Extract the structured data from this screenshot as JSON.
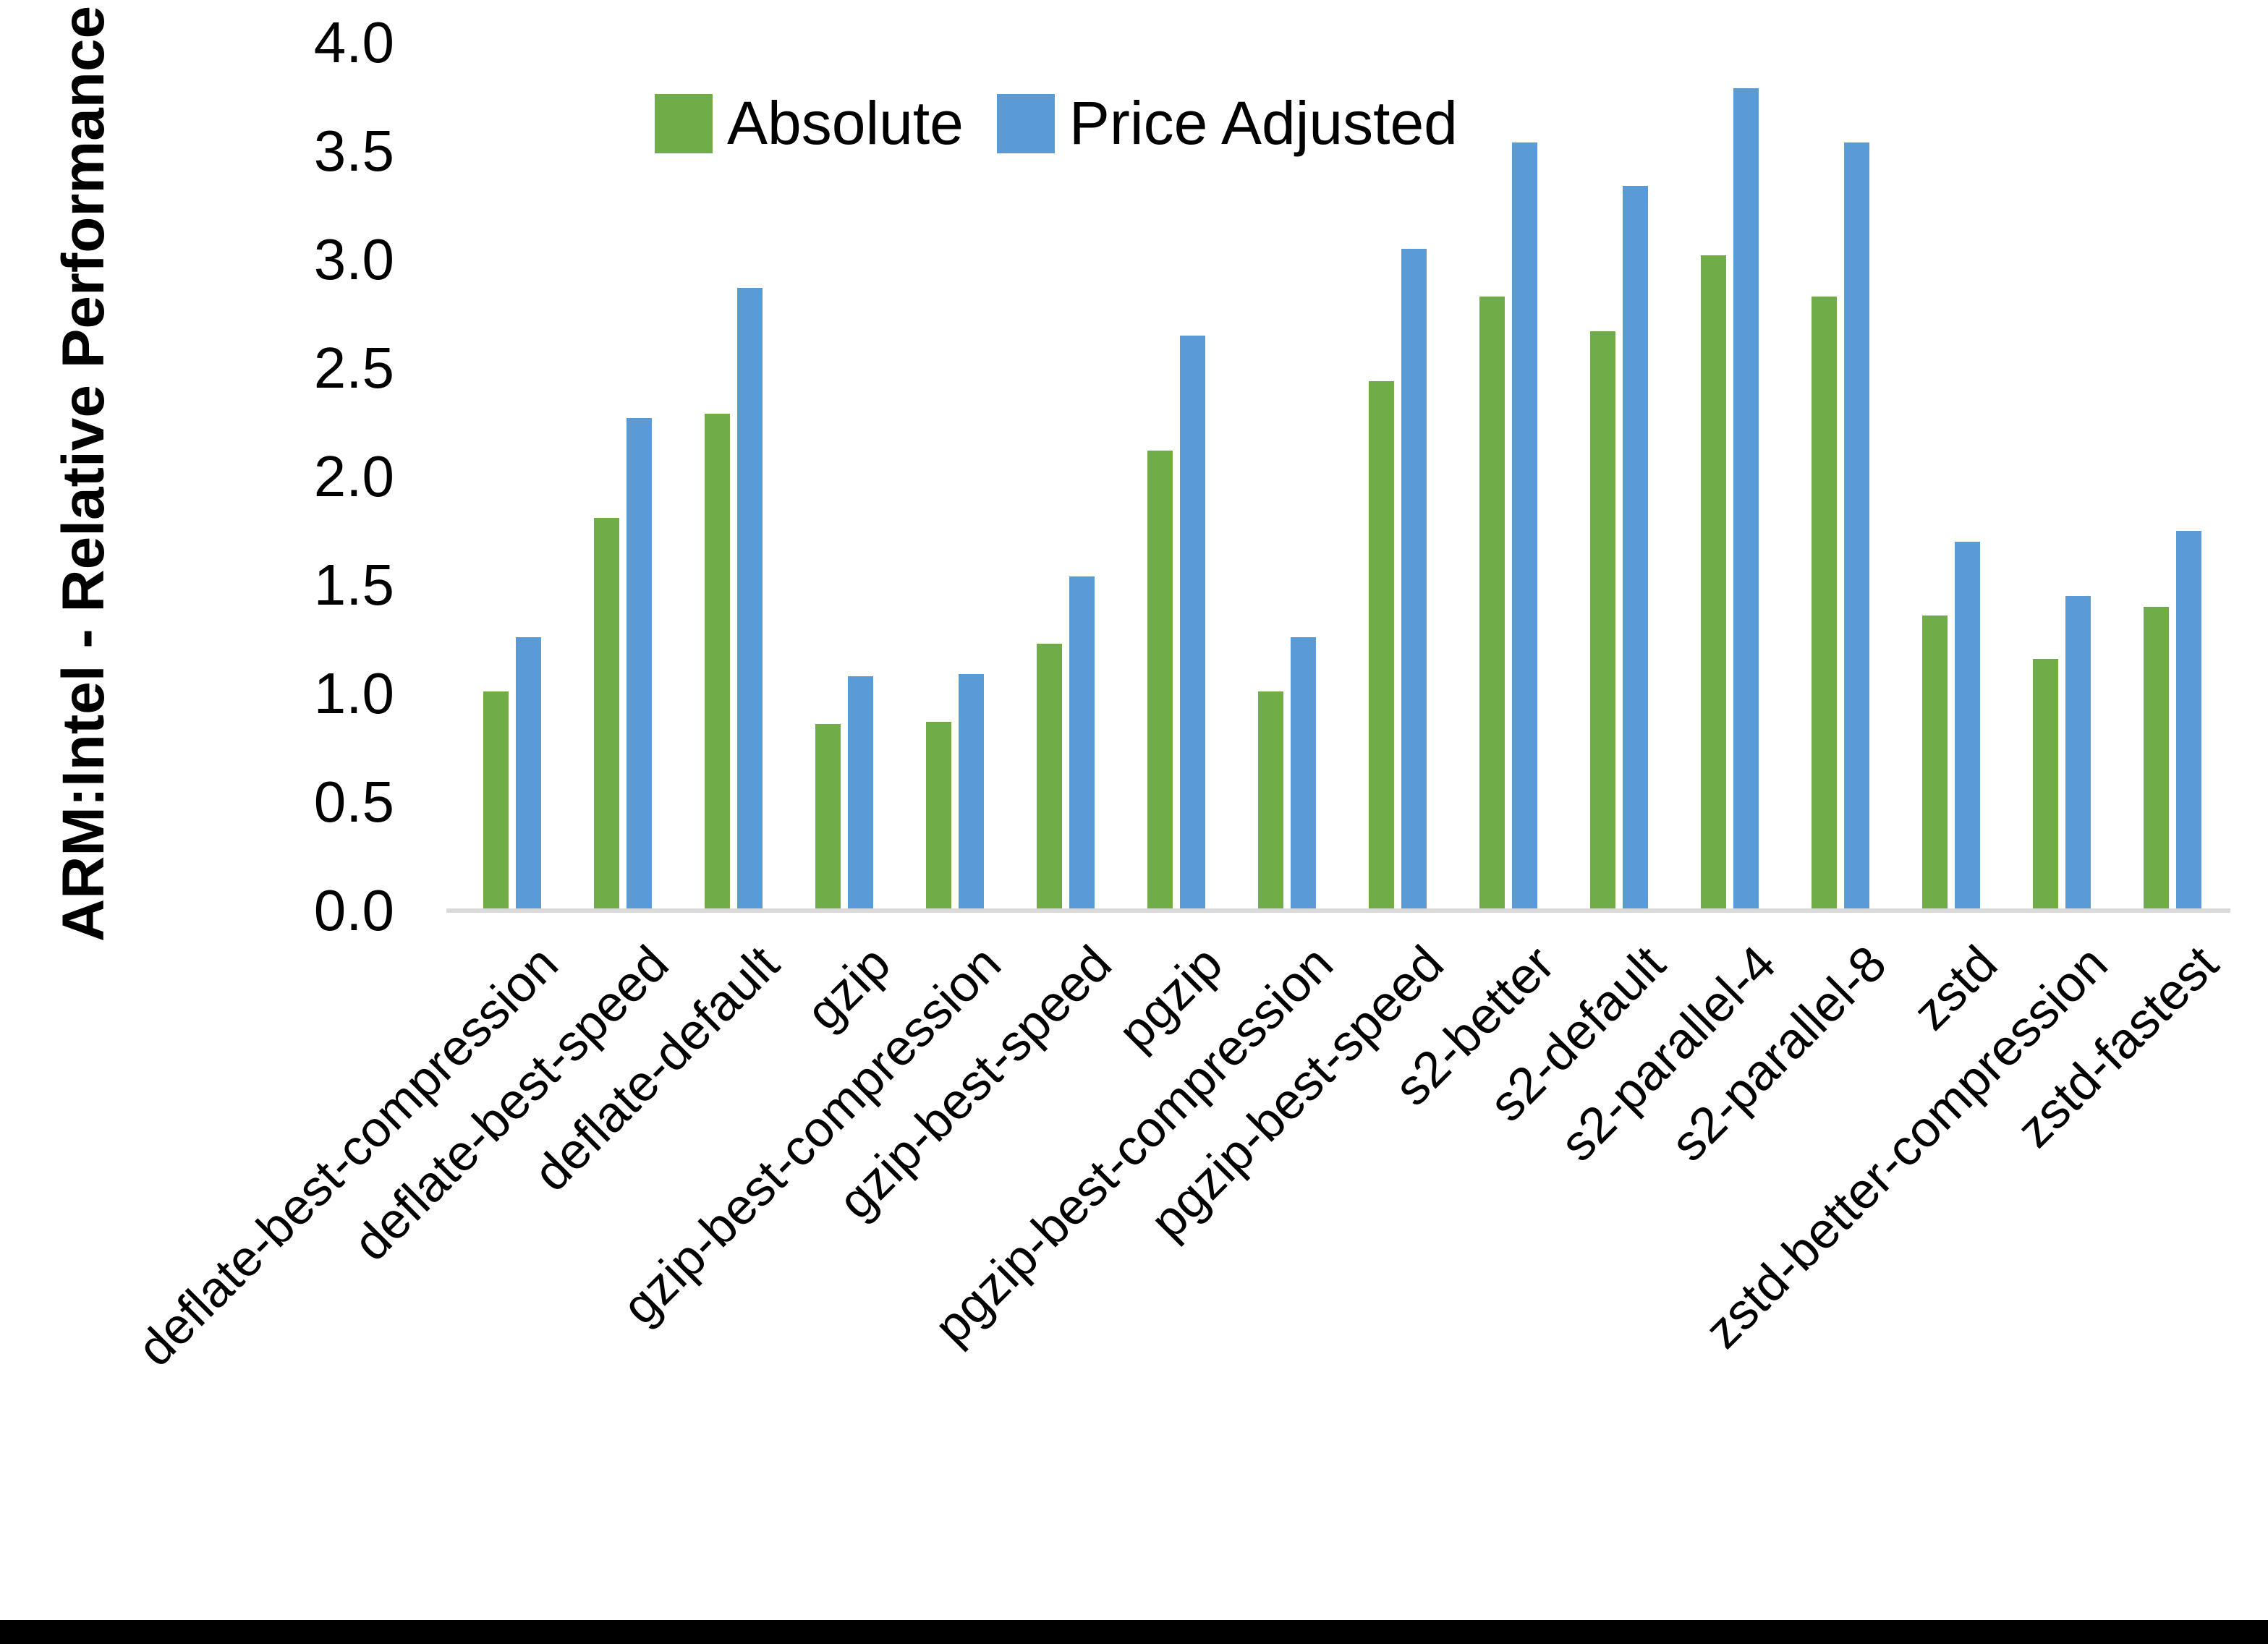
{
  "chart_data": {
    "type": "bar",
    "title": "",
    "ylabel": "ARM:Intel - Relative Performance",
    "xlabel": "",
    "ylim": [
      0.0,
      4.0
    ],
    "ytick_step": 0.5,
    "ytick_labels": [
      "0.0",
      "0.5",
      "1.0",
      "1.5",
      "2.0",
      "2.5",
      "3.0",
      "3.5",
      "4.0"
    ],
    "grid": false,
    "legend_position": "top-center",
    "categories": [
      "deflate-best-compression",
      "deflate-best-speed",
      "deflate-default",
      "gzip",
      "gzip-best-compression",
      "gzip-best-speed",
      "pgzip",
      "pgzip-best-compression",
      "pgzip-best-speed",
      "s2-better",
      "s2-default",
      "s2-parallel-4",
      "s2-parallel-8",
      "zstd",
      "zstd-better-compression",
      "zstd-fastest"
    ],
    "series": [
      {
        "name": "Absolute",
        "color": "#70AD47",
        "values": [
          1.01,
          1.81,
          2.29,
          0.86,
          0.87,
          1.23,
          2.12,
          1.01,
          2.44,
          2.83,
          2.67,
          3.02,
          2.83,
          1.36,
          1.16,
          1.4
        ]
      },
      {
        "name": "Price Adjusted",
        "color": "#5B9BD5",
        "values": [
          1.26,
          2.27,
          2.87,
          1.08,
          1.09,
          1.54,
          2.65,
          1.26,
          3.05,
          3.54,
          3.34,
          3.79,
          3.54,
          1.7,
          1.45,
          1.75
        ]
      }
    ]
  },
  "colors": {
    "axis_line": "#D9D9D9",
    "text": "#000000",
    "background": "#FFFFFF",
    "bottom_border": "#000000"
  }
}
